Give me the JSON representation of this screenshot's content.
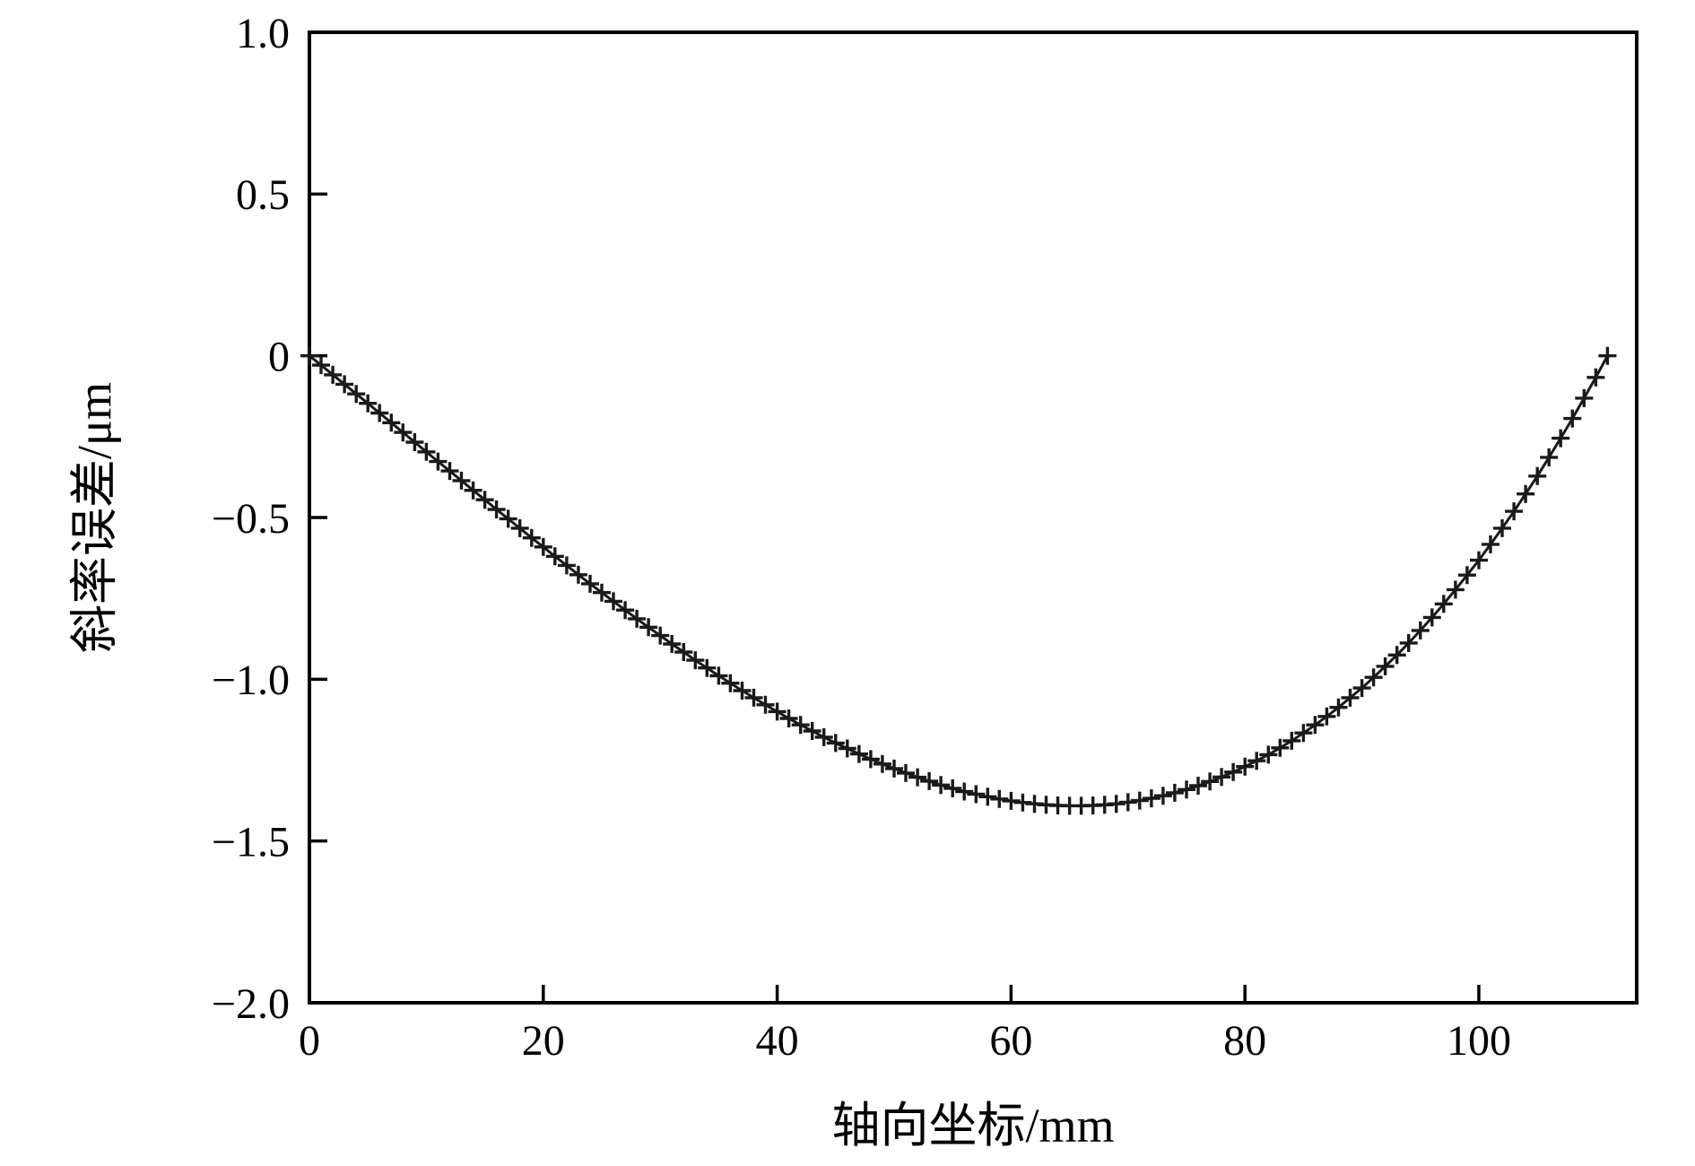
{
  "figure": {
    "background": "#ffffff",
    "axis_color": "#000000",
    "line_color": "#1a1a1a"
  },
  "chart_data": {
    "type": "line",
    "title": "",
    "xlabel": "轴向坐标/mm",
    "ylabel": "斜率误差/μm",
    "xlim": [
      0,
      113.5
    ],
    "ylim": [
      -2.0,
      1.0
    ],
    "xticks": [
      0,
      20,
      40,
      60,
      80,
      100
    ],
    "xtick_labels": [
      "0",
      "20",
      "40",
      "60",
      "80",
      "100"
    ],
    "yticks": [
      1.0,
      0.5,
      0,
      -0.5,
      -1.0,
      -1.5,
      -2.0
    ],
    "ytick_labels": [
      "1.0",
      "0.5",
      "0",
      "−0.5",
      "−1.0",
      "−1.5",
      "−2.0"
    ],
    "grid": false,
    "legend": "none",
    "marker": "+",
    "series": [
      {
        "name": "斜率误差",
        "x": [
          0,
          1,
          2,
          3,
          4,
          5,
          6,
          7,
          8,
          9,
          10,
          11,
          12,
          13,
          14,
          15,
          16,
          17,
          18,
          19,
          20,
          21,
          22,
          23,
          24,
          25,
          26,
          27,
          28,
          29,
          30,
          31,
          32,
          33,
          34,
          35,
          36,
          37,
          38,
          39,
          40,
          41,
          42,
          43,
          44,
          45,
          46,
          47,
          48,
          49,
          50,
          51,
          52,
          53,
          54,
          55,
          56,
          57,
          58,
          59,
          60,
          61,
          62,
          63,
          64,
          65,
          66,
          67,
          68,
          69,
          70,
          71,
          72,
          73,
          74,
          75,
          76,
          77,
          78,
          79,
          80,
          81,
          82,
          83,
          84,
          85,
          86,
          87,
          88,
          89,
          90,
          91,
          92,
          93,
          94,
          95,
          96,
          97,
          98,
          99,
          100,
          101,
          102,
          103,
          104,
          105,
          106,
          107,
          108,
          109,
          110,
          111
        ],
        "y": [
          0.0,
          -0.029,
          -0.059,
          -0.088,
          -0.118,
          -0.147,
          -0.177,
          -0.207,
          -0.237,
          -0.267,
          -0.297,
          -0.327,
          -0.356,
          -0.386,
          -0.416,
          -0.445,
          -0.475,
          -0.504,
          -0.533,
          -0.563,
          -0.591,
          -0.62,
          -0.648,
          -0.677,
          -0.705,
          -0.732,
          -0.759,
          -0.786,
          -0.813,
          -0.839,
          -0.865,
          -0.891,
          -0.916,
          -0.941,
          -0.965,
          -0.989,
          -1.012,
          -1.035,
          -1.057,
          -1.079,
          -1.1,
          -1.121,
          -1.141,
          -1.16,
          -1.179,
          -1.197,
          -1.214,
          -1.231,
          -1.247,
          -1.262,
          -1.276,
          -1.29,
          -1.303,
          -1.315,
          -1.327,
          -1.337,
          -1.347,
          -1.355,
          -1.363,
          -1.37,
          -1.376,
          -1.381,
          -1.385,
          -1.388,
          -1.39,
          -1.391,
          -1.391,
          -1.39,
          -1.388,
          -1.385,
          -1.38,
          -1.375,
          -1.368,
          -1.36,
          -1.351,
          -1.341,
          -1.329,
          -1.316,
          -1.302,
          -1.287,
          -1.27,
          -1.252,
          -1.233,
          -1.212,
          -1.19,
          -1.166,
          -1.141,
          -1.115,
          -1.087,
          -1.057,
          -1.027,
          -0.994,
          -0.96,
          -0.925,
          -0.888,
          -0.849,
          -0.809,
          -0.767,
          -0.723,
          -0.678,
          -0.632,
          -0.583,
          -0.533,
          -0.481,
          -0.427,
          -0.372,
          -0.314,
          -0.255,
          -0.194,
          -0.131,
          -0.067,
          0.0
        ]
      }
    ]
  }
}
